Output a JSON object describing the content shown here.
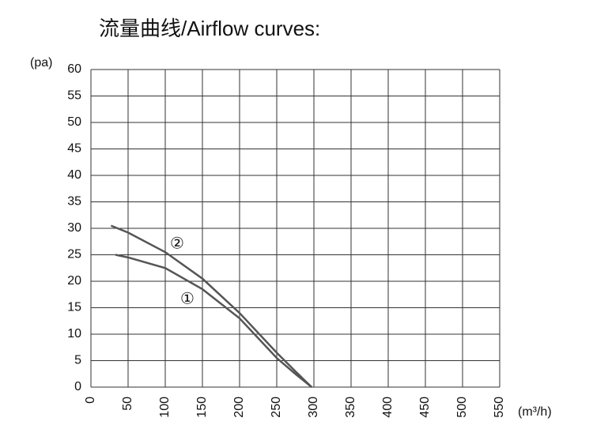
{
  "chart_data": {
    "type": "line",
    "title": "流量曲线/Airflow curves:",
    "y_label": "(pa)",
    "x_label": "(m³/h)",
    "xlim": [
      0,
      550
    ],
    "xticks": [
      0,
      50,
      100,
      150,
      200,
      250,
      300,
      350,
      400,
      450,
      500,
      550
    ],
    "ylim": [
      0,
      60
    ],
    "yticks": [
      0,
      5,
      10,
      15,
      20,
      25,
      30,
      35,
      40,
      45,
      50,
      55,
      60
    ],
    "grid": true,
    "series": [
      {
        "name": "①",
        "color": "#555555",
        "x": [
          33,
          50,
          100,
          150,
          200,
          250,
          275,
          297
        ],
        "values": [
          25,
          24.5,
          22.5,
          18.5,
          13,
          5.5,
          2.5,
          0
        ]
      },
      {
        "name": "②",
        "color": "#555555",
        "x": [
          27,
          50,
          100,
          150,
          200,
          250,
          275,
          297
        ],
        "values": [
          30.5,
          29.2,
          25.5,
          20.5,
          14,
          6.5,
          3,
          0
        ]
      }
    ]
  }
}
